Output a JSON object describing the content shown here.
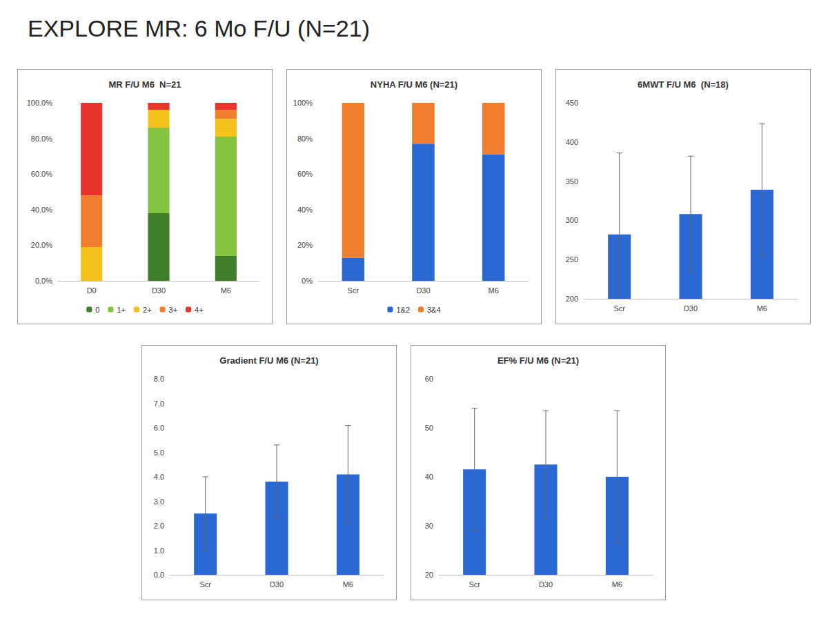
{
  "title": "EXPLORE MR: 6 Mo F/U (N=21)",
  "chart_data": [
    {
      "type": "bar",
      "title": "MR F/U M6  N=21",
      "stacked": true,
      "grid": false,
      "legend": "bottom",
      "categories": [
        "D0",
        "D30",
        "M6"
      ],
      "series": [
        {
          "name": "0",
          "color": "#3f7f2a",
          "values": [
            0,
            38,
            14
          ]
        },
        {
          "name": "1+",
          "color": "#84c441",
          "values": [
            0,
            48,
            67
          ]
        },
        {
          "name": "2+",
          "color": "#f5c21b",
          "values": [
            19,
            10,
            10
          ]
        },
        {
          "name": "3+",
          "color": "#f07e2c",
          "values": [
            29,
            0,
            5
          ]
        },
        {
          "name": "4+",
          "color": "#e8342b",
          "values": [
            52,
            4,
            4
          ]
        }
      ],
      "ylim": [
        0,
        100
      ],
      "yticks": [
        {
          "value": 0,
          "label": "0.0%"
        },
        {
          "value": 20,
          "label": "20.0%"
        },
        {
          "value": 40,
          "label": "40.0%"
        },
        {
          "value": 60,
          "label": "60.0%"
        },
        {
          "value": 80,
          "label": "80.0%"
        },
        {
          "value": 100,
          "label": "100.0%"
        }
      ]
    },
    {
      "type": "bar",
      "title": "NYHA F/U M6 (N=21)",
      "stacked": true,
      "grid": false,
      "legend": "bottom",
      "categories": [
        "Scr",
        "D30",
        "M6"
      ],
      "series": [
        {
          "name": "1&2",
          "color": "#2a68d3",
          "values": [
            13,
            77,
            71
          ]
        },
        {
          "name": "3&4",
          "color": "#f07e2c",
          "values": [
            87,
            23,
            29
          ]
        }
      ],
      "ylim": [
        0,
        100
      ],
      "yticks": [
        {
          "value": 0,
          "label": "0%"
        },
        {
          "value": 20,
          "label": "20%"
        },
        {
          "value": 40,
          "label": "40%"
        },
        {
          "value": 60,
          "label": "60%"
        },
        {
          "value": 80,
          "label": "80%"
        },
        {
          "value": 100,
          "label": "100%"
        }
      ]
    },
    {
      "type": "bar",
      "title": "6MWT F/U M6  (N=18)",
      "grid": false,
      "color": "#2a68d3",
      "categories": [
        "Scr",
        "D30",
        "M6"
      ],
      "values": [
        282,
        308,
        339
      ],
      "errors": [
        104,
        74,
        84
      ],
      "ylim": [
        200,
        450
      ],
      "yticks": [
        200,
        250,
        300,
        350,
        400,
        450
      ]
    },
    {
      "type": "bar",
      "title": "Gradient F/U M6 (N=21)",
      "grid": false,
      "color": "#2a68d3",
      "categories": [
        "Scr",
        "D30",
        "M6"
      ],
      "values": [
        2.5,
        3.8,
        4.1
      ],
      "errors": [
        1.5,
        1.5,
        2.0
      ],
      "ylim": [
        0,
        8
      ],
      "yticks": [
        {
          "value": 0,
          "label": "0.0"
        },
        {
          "value": 1,
          "label": "1.0"
        },
        {
          "value": 2,
          "label": "2.0"
        },
        {
          "value": 3,
          "label": "3.0"
        },
        {
          "value": 4,
          "label": "4.0"
        },
        {
          "value": 5,
          "label": "5.0"
        },
        {
          "value": 6,
          "label": "6.0"
        },
        {
          "value": 7,
          "label": "7.0"
        },
        {
          "value": 8,
          "label": "8.0"
        }
      ]
    },
    {
      "type": "bar",
      "title": "EF% F/U M6 (N=21)",
      "grid": false,
      "color": "#2a68d3",
      "categories": [
        "Scr",
        "D30",
        "M6"
      ],
      "values": [
        41.5,
        42.5,
        40
      ],
      "errors": [
        12.5,
        11,
        13.5
      ],
      "ylim": [
        20,
        60
      ],
      "yticks": [
        20,
        30,
        40,
        50,
        60
      ]
    }
  ]
}
